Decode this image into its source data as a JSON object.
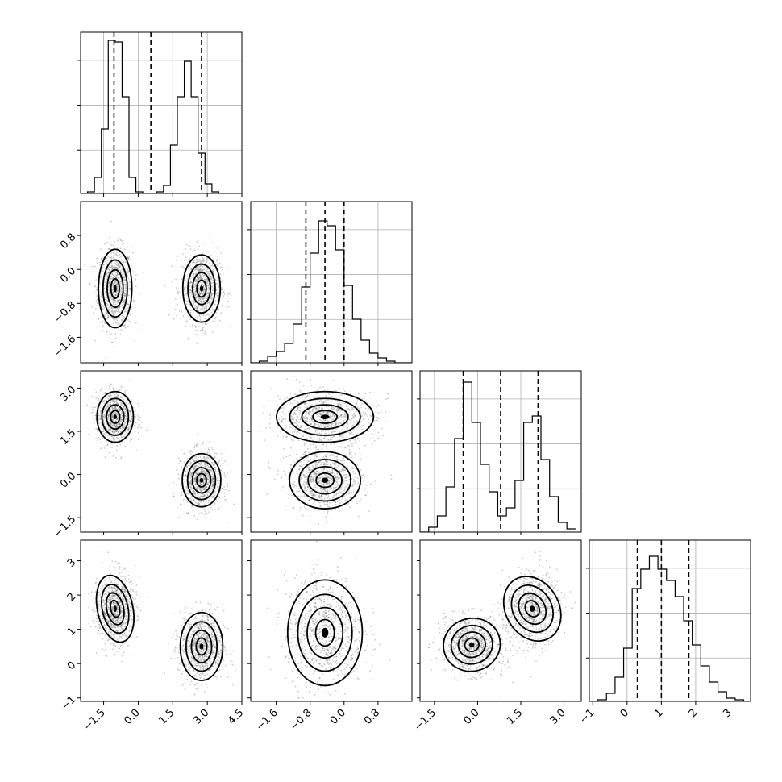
{
  "chart_data": {
    "type": "corner",
    "params": [
      {
        "range": [
          -2.5,
          4.5
        ],
        "ticks": [
          -1.5,
          0.0,
          1.5,
          3.0,
          4.5
        ],
        "tick_labels": [
          "−1.5",
          "0.0",
          "1.5",
          "3.0",
          "4.5"
        ],
        "quantiles": [
          -1.05,
          0.55,
          2.75
        ]
      },
      {
        "range": [
          -2.2,
          1.6
        ],
        "ticks": [
          -1.6,
          -0.8,
          0.0,
          0.8
        ],
        "tick_labels": [
          "−1.6",
          "−0.8",
          "0.0",
          "0.8"
        ],
        "quantiles": [
          -0.9,
          -0.45,
          0.0
        ]
      },
      {
        "range": [
          -2.0,
          3.6
        ],
        "ticks": [
          -1.5,
          0.0,
          1.5,
          3.0
        ],
        "tick_labels": [
          "−1.5",
          "0.0",
          "1.5",
          "3.0"
        ],
        "quantiles": [
          -0.5,
          0.8,
          2.1
        ]
      },
      {
        "range": [
          -1.1,
          3.6
        ],
        "ticks": [
          -1,
          0,
          1,
          2,
          3
        ],
        "tick_labels": [
          "−1",
          "0",
          "1",
          "2",
          "3"
        ],
        "quantiles": [
          0.3,
          1.0,
          1.8
        ]
      }
    ],
    "histograms": [
      {
        "bins": [
          -2.5,
          -2.2,
          -1.9,
          -1.6,
          -1.3,
          -1.0,
          -0.7,
          -0.4,
          -0.1,
          0.2,
          0.5,
          0.8,
          1.1,
          1.4,
          1.7,
          2.0,
          2.3,
          2.6,
          2.9,
          3.2,
          3.5,
          3.8,
          4.1,
          4.4
        ],
        "counts": [
          0,
          0.01,
          0.1,
          0.4,
          0.95,
          0.94,
          0.6,
          0.1,
          0.01,
          0,
          0,
          0.01,
          0.05,
          0.3,
          0.6,
          0.82,
          0.6,
          0.25,
          0.06,
          0.01,
          0,
          0,
          0
        ]
      },
      {
        "bins": [
          -2.2,
          -2.0,
          -1.8,
          -1.6,
          -1.4,
          -1.2,
          -1.0,
          -0.8,
          -0.6,
          -0.4,
          -0.2,
          0.0,
          0.2,
          0.4,
          0.6,
          0.8,
          1.0,
          1.2,
          1.4,
          1.6
        ],
        "counts": [
          0,
          0.01,
          0.04,
          0.07,
          0.12,
          0.24,
          0.47,
          0.68,
          0.88,
          0.85,
          0.7,
          0.48,
          0.27,
          0.14,
          0.06,
          0.03,
          0.01,
          0,
          0
        ]
      },
      {
        "bins": [
          -2.0,
          -1.7,
          -1.4,
          -1.1,
          -0.8,
          -0.5,
          -0.2,
          0.1,
          0.4,
          0.7,
          1.0,
          1.3,
          1.6,
          1.9,
          2.2,
          2.5,
          2.8,
          3.1,
          3.4
        ],
        "counts": [
          0,
          0.03,
          0.1,
          0.28,
          0.58,
          0.93,
          0.68,
          0.42,
          0.25,
          0.1,
          0.15,
          0.32,
          0.68,
          0.72,
          0.45,
          0.22,
          0.06,
          0.02
        ]
      },
      {
        "bins": [
          -1.1,
          -0.85,
          -0.6,
          -0.35,
          -0.1,
          0.15,
          0.4,
          0.65,
          0.9,
          1.15,
          1.4,
          1.65,
          1.9,
          2.15,
          2.4,
          2.65,
          2.9,
          3.15,
          3.4,
          3.6
        ],
        "counts": [
          0,
          0.01,
          0.05,
          0.15,
          0.33,
          0.7,
          0.82,
          0.9,
          0.82,
          0.75,
          0.65,
          0.5,
          0.35,
          0.22,
          0.12,
          0.06,
          0.02,
          0.01,
          0
        ]
      }
    ],
    "pairs": [
      {
        "x": 0,
        "y": 1,
        "modes": [
          {
            "mx": -1.0,
            "my": -0.45,
            "sx": 0.33,
            "sy": 0.42
          },
          {
            "mx": 2.75,
            "my": -0.45,
            "sx": 0.37,
            "sy": 0.36
          }
        ]
      },
      {
        "x": 0,
        "y": 2,
        "modes": [
          {
            "mx": -1.0,
            "my": 2.0,
            "sx": 0.36,
            "sy": 0.4
          },
          {
            "mx": 2.75,
            "my": -0.2,
            "sx": 0.38,
            "sy": 0.42
          }
        ]
      },
      {
        "x": 1,
        "y": 2,
        "modes": [
          {
            "mx": -0.45,
            "my": 2.0,
            "sx": 0.52,
            "sy": 0.4
          },
          {
            "mx": -0.45,
            "my": -0.2,
            "sx": 0.38,
            "sy": 0.45
          }
        ]
      },
      {
        "x": 0,
        "y": 3,
        "modes": [
          {
            "mx": -1.0,
            "my": 1.6,
            "sx": 0.35,
            "sy": 0.45,
            "rot": -12
          },
          {
            "mx": 2.75,
            "my": 0.5,
            "sx": 0.42,
            "sy": 0.45
          }
        ]
      },
      {
        "x": 1,
        "y": 3,
        "modes": [
          {
            "mx": -0.45,
            "my": 0.9,
            "sx": 0.4,
            "sy": 0.7
          }
        ]
      },
      {
        "x": 2,
        "y": 3,
        "modes": [
          {
            "mx": -0.2,
            "my": 0.55,
            "sx": 0.45,
            "sy": 0.35,
            "rot": -15
          },
          {
            "mx": 1.9,
            "my": 1.6,
            "sx": 0.42,
            "sy": 0.45,
            "rot": -30
          }
        ]
      }
    ]
  }
}
